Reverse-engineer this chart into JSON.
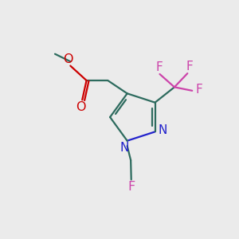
{
  "background_color": "#ebebeb",
  "bond_color": "#2d6b5e",
  "oxygen_color": "#cc0000",
  "nitrogen_color": "#2222cc",
  "fluorine_color": "#cc44aa",
  "line_width": 1.6,
  "figsize": [
    3.0,
    3.0
  ],
  "dpi": 100,
  "xlim": [
    0,
    10
  ],
  "ylim": [
    0,
    10
  ]
}
